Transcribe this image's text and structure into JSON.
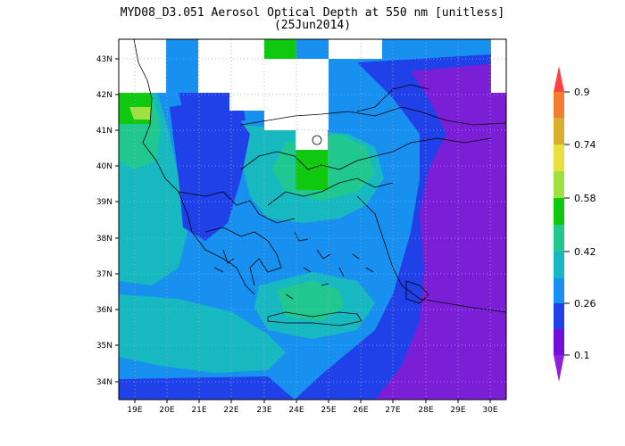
{
  "title": {
    "line1": "MYD08_D3.051 Aerosol Optical Depth at 550 nm [unitless]",
    "line2": "(25Jun2014)"
  },
  "map": {
    "lat_labels": [
      "43N",
      "42N",
      "41N",
      "40N",
      "39N",
      "38N",
      "37N",
      "36N",
      "35N",
      "34N"
    ],
    "lon_labels": [
      "19E",
      "20E",
      "21E",
      "22E",
      "23E",
      "24E",
      "25E",
      "26E",
      "27E",
      "28E",
      "29E",
      "30E"
    ],
    "lat_range": [
      33.5,
      43.5
    ],
    "lon_range": [
      18.5,
      30.5
    ],
    "grid": "dotted",
    "missing_data_color": "#ffffff"
  },
  "colorbar": {
    "labels": [
      "0.9",
      "0.74",
      "0.58",
      "0.42",
      "0.26",
      "0.1"
    ],
    "colors": [
      "#ff4040",
      "#f08030",
      "#d8b030",
      "#e8e040",
      "#a0e040",
      "#10c810",
      "#20c890",
      "#18b8c0",
      "#1890f0",
      "#2040e8",
      "#7010d8",
      "#9020d8"
    ],
    "extend": "both"
  },
  "legend_colors": {
    "very_low": "#7a1fd6",
    "low": "#2040e8",
    "low_mid": "#1890f0",
    "mid": "#18b8c0",
    "mid_high": "#20c890",
    "high": "#10c810",
    "higher": "#a0e040"
  }
}
